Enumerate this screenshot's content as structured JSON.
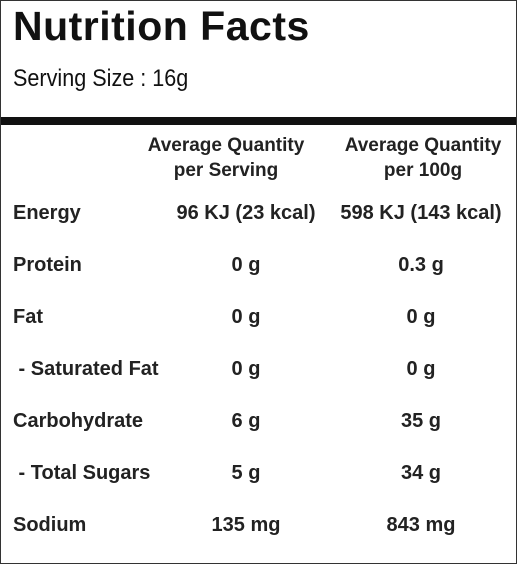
{
  "header": {
    "title": "Nutrition Facts",
    "serving": "Serving Size : 16g"
  },
  "table": {
    "columns": [
      [
        "Average Quantity",
        "per Serving"
      ],
      [
        "Average Quantity",
        "per 100g"
      ]
    ],
    "rows": [
      [
        "Energy",
        "96 KJ (23 kcal)",
        "598 KJ (143 kcal)"
      ],
      [
        "Protein",
        "0 g",
        "0.3 g"
      ],
      [
        "Fat",
        "0 g",
        "0 g"
      ],
      [
        " - Saturated Fat",
        "0 g",
        "0 g"
      ],
      [
        "Carbohydrate",
        "6 g",
        "35 g"
      ],
      [
        " - Total Sugars",
        "5 g",
        "34 g"
      ],
      [
        "Sodium",
        "135 mg",
        "843 mg"
      ]
    ]
  }
}
